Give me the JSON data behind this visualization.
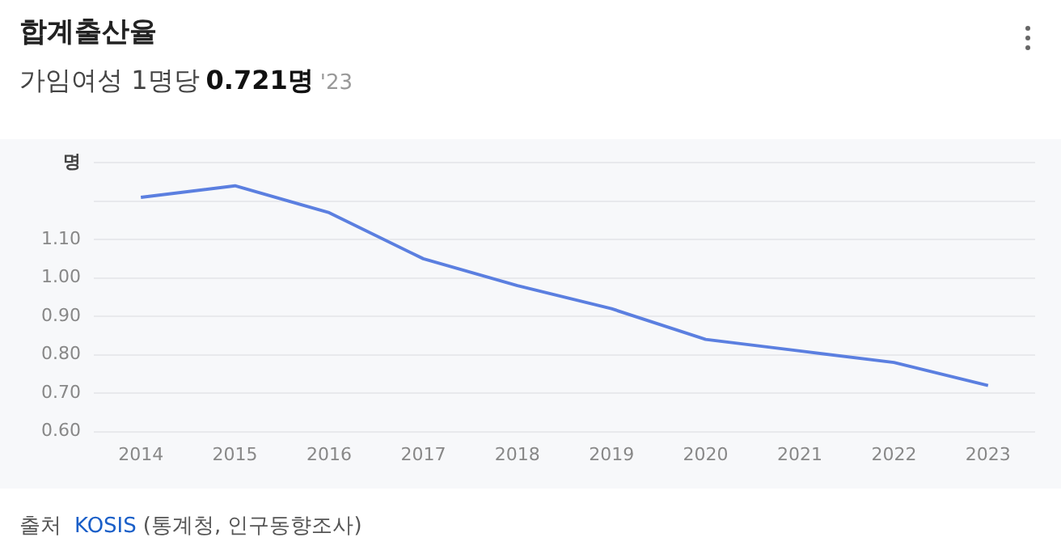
{
  "chart_data": {
    "type": "line",
    "title": "합계출산율",
    "subtitle": "가임여성 1명당",
    "ylabel": "명",
    "annotations": [
      "0.721명",
      "'23",
      "출처",
      "KOSIS",
      "(통계청, 인구동향조사)"
    ],
    "categories": [
      "2014",
      "2015",
      "2016",
      "2017",
      "2018",
      "2019",
      "2020",
      "2021",
      "2022",
      "2023"
    ],
    "series": [
      {
        "color": "#5b7fe0",
        "values": [
          1.21,
          1.24,
          1.17,
          1.05,
          0.98,
          0.92,
          0.84,
          0.81,
          0.78,
          0.72
        ]
      }
    ],
    "ylim": [
      0.6,
      1.3
    ],
    "yticks": [
      {
        "value": 0.6,
        "label": "0.60"
      },
      {
        "value": 0.7,
        "label": "0.70"
      },
      {
        "value": 0.8,
        "label": "0.80"
      },
      {
        "value": 0.9,
        "label": "0.90"
      },
      {
        "value": 1.0,
        "label": "1.00"
      },
      {
        "value": 1.1,
        "label": "1.10"
      },
      {
        "value": 1.2,
        "label": null
      },
      {
        "value": 1.3,
        "label": null
      }
    ],
    "grid": "y",
    "legend": false,
    "marker": "none",
    "line_style": "solid"
  }
}
